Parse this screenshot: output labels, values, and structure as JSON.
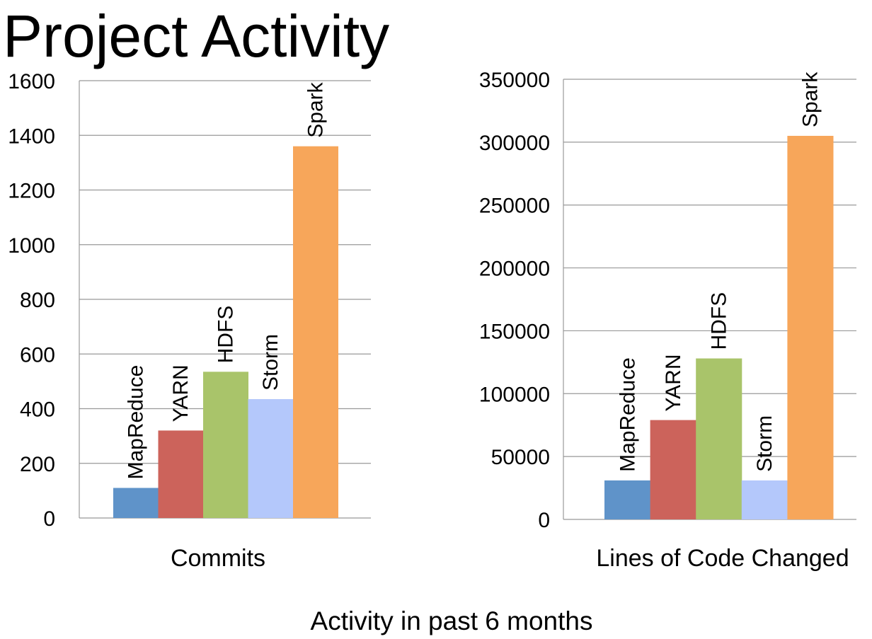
{
  "slide": {
    "title": "Project Activity",
    "footer": "Activity in past 6 months"
  },
  "colors": {
    "MapReduce": "#5f93c9",
    "YARN": "#cc635b",
    "HDFS": "#a9c46a",
    "Storm": "#b4c8fb",
    "Spark": "#f7a65a"
  },
  "chart_data": [
    {
      "type": "bar",
      "title": "",
      "xlabel": "Commits",
      "ylabel": "",
      "ylim": [
        0,
        1600
      ],
      "yticks": [
        0,
        200,
        400,
        600,
        800,
        1000,
        1200,
        1400,
        1600
      ],
      "grid": true,
      "legend": "none",
      "categories": [
        "MapReduce",
        "YARN",
        "HDFS",
        "Storm",
        "Spark"
      ],
      "values": [
        110,
        320,
        535,
        435,
        1360
      ]
    },
    {
      "type": "bar",
      "title": "",
      "xlabel": "Lines of Code Changed",
      "ylabel": "",
      "ylim": [
        0,
        350000
      ],
      "yticks": [
        0,
        50000,
        100000,
        150000,
        200000,
        250000,
        300000,
        350000
      ],
      "grid": true,
      "legend": "none",
      "categories": [
        "MapReduce",
        "YARN",
        "HDFS",
        "Storm",
        "Spark"
      ],
      "values": [
        31000,
        79000,
        128000,
        31000,
        305000
      ]
    }
  ]
}
